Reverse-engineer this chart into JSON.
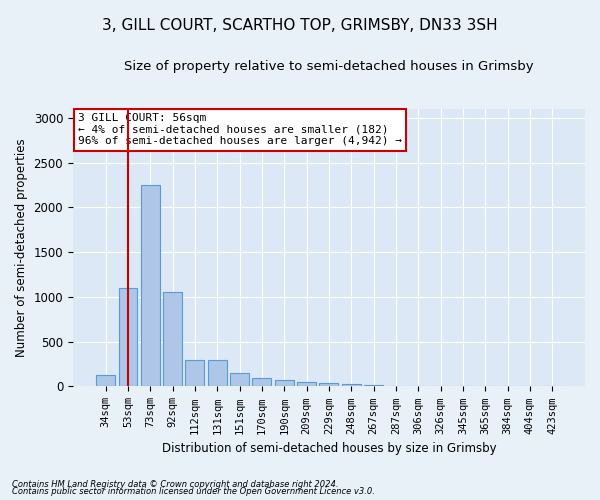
{
  "title": "3, GILL COURT, SCARTHO TOP, GRIMSBY, DN33 3SH",
  "subtitle": "Size of property relative to semi-detached houses in Grimsby",
  "xlabel": "Distribution of semi-detached houses by size in Grimsby",
  "ylabel": "Number of semi-detached properties",
  "footnote1": "Contains HM Land Registry data © Crown copyright and database right 2024.",
  "footnote2": "Contains public sector information licensed under the Open Government Licence v3.0.",
  "categories": [
    "34sqm",
    "53sqm",
    "73sqm",
    "92sqm",
    "112sqm",
    "131sqm",
    "151sqm",
    "170sqm",
    "190sqm",
    "209sqm",
    "229sqm",
    "248sqm",
    "267sqm",
    "287sqm",
    "306sqm",
    "326sqm",
    "345sqm",
    "365sqm",
    "384sqm",
    "404sqm",
    "423sqm"
  ],
  "values": [
    130,
    1100,
    2250,
    1060,
    290,
    290,
    150,
    90,
    70,
    55,
    40,
    30,
    15,
    10,
    5,
    3,
    2,
    1,
    1,
    0,
    0
  ],
  "bar_color": "#aec6e8",
  "bar_edge_color": "#5b9bd5",
  "red_line_x": 1.5,
  "annotation_title": "3 GILL COURT: 56sqm",
  "annotation_line1": "← 4% of semi-detached houses are smaller (182)",
  "annotation_line2": "96% of semi-detached houses are larger (4,942) →",
  "annotation_box_color": "#ffffff",
  "annotation_border_color": "#cc0000",
  "ylim": [
    0,
    3100
  ],
  "yticks": [
    0,
    500,
    1000,
    1500,
    2000,
    2500,
    3000
  ],
  "bg_color": "#e8f0f8",
  "plot_bg_color": "#dce8f5",
  "grid_color": "#ffffff",
  "title_fontsize": 11,
  "subtitle_fontsize": 9.5,
  "tick_fontsize": 7.5
}
